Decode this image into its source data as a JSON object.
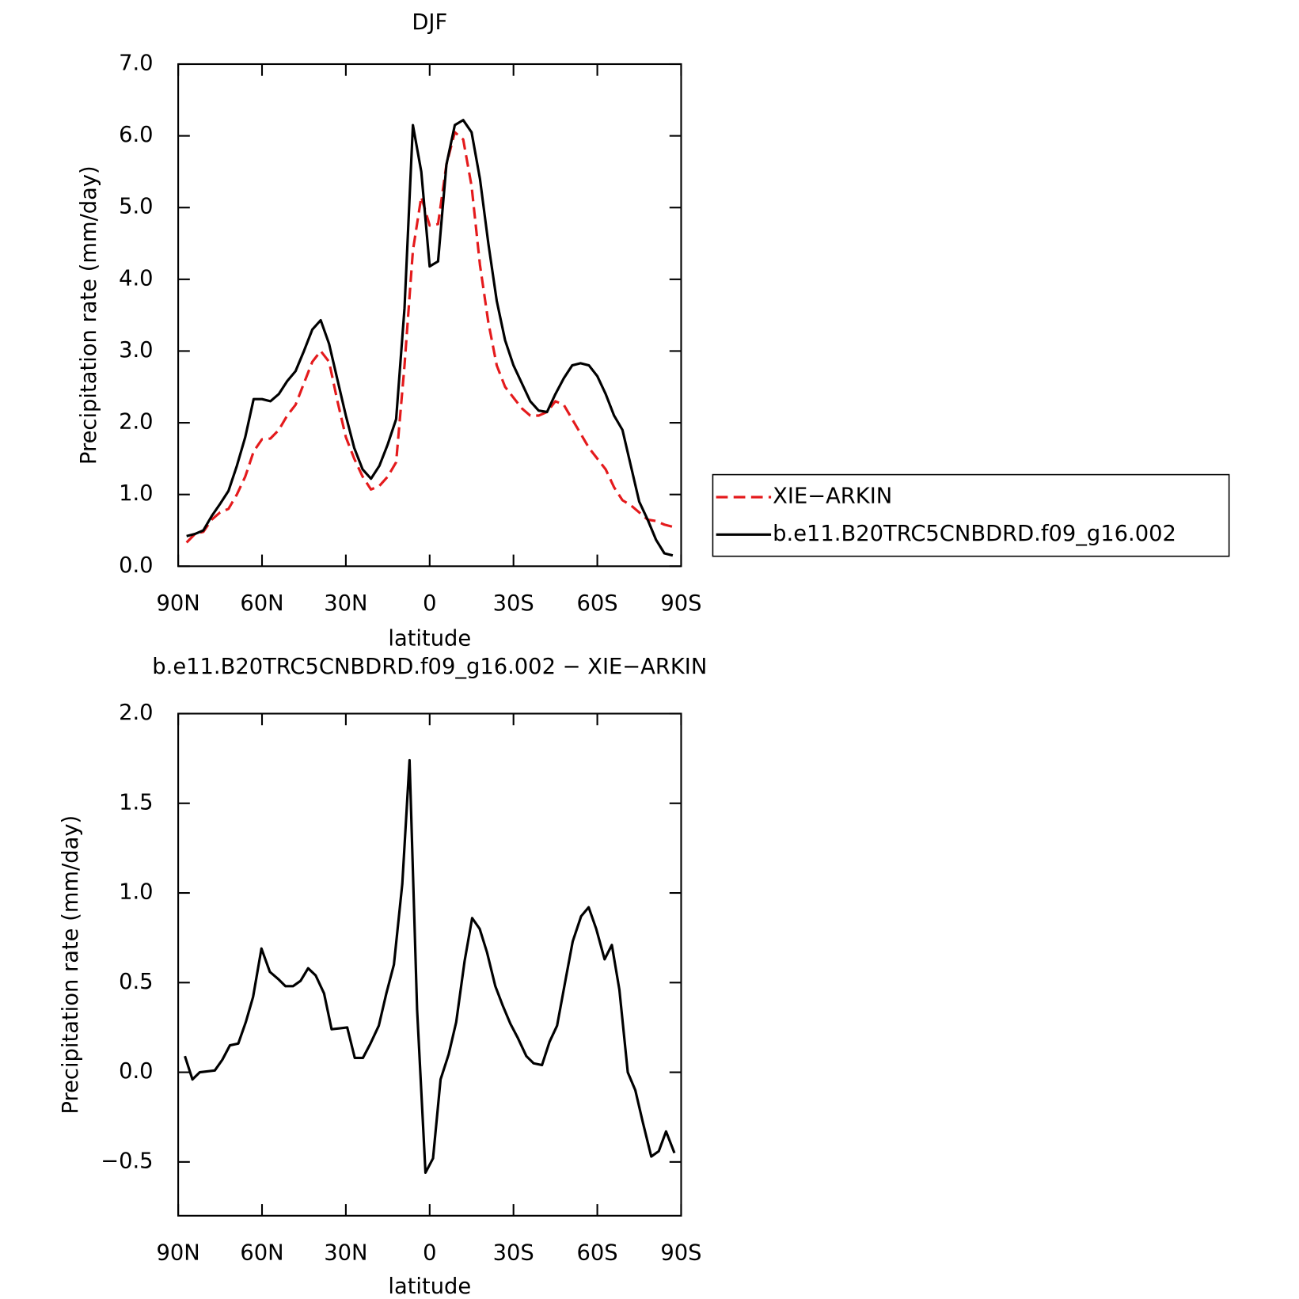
{
  "chart_data": [
    {
      "type": "line",
      "title": "DJF",
      "xlabel": "latitude",
      "ylabel": "Precipitation rate (mm/day)",
      "x": [
        87,
        84,
        81,
        78,
        75,
        72,
        69,
        66,
        63,
        60,
        57,
        54,
        51,
        48,
        45,
        42,
        39,
        36,
        33,
        30,
        27,
        24,
        21,
        18,
        15,
        12,
        9,
        6,
        3,
        0,
        -3,
        -6,
        -9,
        -12,
        -15,
        -18,
        -21,
        -24,
        -27,
        -30,
        -33,
        -36,
        -39,
        -42,
        -45,
        -48,
        -51,
        -54,
        -57,
        -60,
        -63,
        -66,
        -69,
        -72,
        -75,
        -78,
        -81,
        -84,
        -87
      ],
      "series": [
        {
          "name": "XIE−ARKIN",
          "color": "#e41a1c",
          "linestyle": "dashed",
          "values": [
            0.33,
            0.45,
            0.48,
            0.65,
            0.75,
            0.8,
            1.0,
            1.25,
            1.6,
            1.77,
            1.78,
            1.9,
            2.1,
            2.25,
            2.55,
            2.85,
            3.0,
            2.85,
            2.3,
            1.8,
            1.5,
            1.25,
            1.07,
            1.12,
            1.25,
            1.45,
            2.8,
            4.4,
            5.15,
            4.75,
            4.77,
            5.6,
            6.05,
            5.95,
            5.3,
            4.2,
            3.4,
            2.8,
            2.5,
            2.35,
            2.2,
            2.1,
            2.1,
            2.15,
            2.3,
            2.25,
            2.05,
            1.85,
            1.65,
            1.5,
            1.35,
            1.1,
            0.92,
            0.85,
            0.75,
            0.65,
            0.63,
            0.58,
            0.55
          ]
        },
        {
          "name": "b.e11.B20TRC5CNBDRD.f09_g16.002",
          "color": "#000000",
          "linestyle": "solid",
          "values": [
            0.42,
            0.45,
            0.5,
            0.7,
            0.87,
            1.05,
            1.4,
            1.8,
            2.33,
            2.33,
            2.3,
            2.4,
            2.58,
            2.72,
            3.0,
            3.3,
            3.43,
            3.1,
            2.6,
            2.1,
            1.65,
            1.35,
            1.22,
            1.4,
            1.7,
            2.05,
            3.6,
            6.15,
            5.5,
            4.18,
            4.25,
            5.6,
            6.15,
            6.22,
            6.05,
            5.4,
            4.5,
            3.7,
            3.15,
            2.8,
            2.55,
            2.3,
            2.17,
            2.15,
            2.4,
            2.62,
            2.8,
            2.83,
            2.8,
            2.65,
            2.4,
            2.1,
            1.9,
            1.4,
            0.9,
            0.65,
            0.37,
            0.18,
            0.15
          ]
        }
      ],
      "xlim": [
        90,
        -90
      ],
      "xticks": [
        {
          "value": 90,
          "label": "90N"
        },
        {
          "value": 60,
          "label": "60N"
        },
        {
          "value": 30,
          "label": "30N"
        },
        0,
        {
          "value": -30,
          "label": "30S"
        },
        {
          "value": -60,
          "label": "60S"
        },
        {
          "value": -90,
          "label": "90S"
        }
      ],
      "ylim": [
        0,
        7
      ],
      "yticks": [
        {
          "value": 0,
          "label": "0.0"
        },
        {
          "value": 1,
          "label": "1.0"
        },
        {
          "value": 2,
          "label": "2.0"
        },
        {
          "value": 3,
          "label": "3.0"
        },
        {
          "value": 4,
          "label": "4.0"
        },
        {
          "value": 5,
          "label": "5.0"
        },
        {
          "value": 6,
          "label": "6.0"
        },
        {
          "value": 7,
          "label": "7.0"
        }
      ],
      "legend": "right"
    },
    {
      "type": "line",
      "title": "b.e11.B20TRC5CNBDRD.f09_g16.002 − XIE−ARKIN",
      "xlabel": "latitude",
      "ylabel": "Precipitation rate (mm/day)",
      "x": [
        87.6,
        84.9,
        82.3,
        79.6,
        76.9,
        74.2,
        71.5,
        68.5,
        65.8,
        63.2,
        60.2,
        57.2,
        54.2,
        51.6,
        48.9,
        46.2,
        43.5,
        40.8,
        37.8,
        35.1,
        32.2,
        29.5,
        26.8,
        23.9,
        21.2,
        18.2,
        15.5,
        12.8,
        9.8,
        7.2,
        4.5,
        1.5,
        -1.2,
        -3.9,
        -6.8,
        -9.5,
        -12.5,
        -15.2,
        -17.9,
        -20.5,
        -23.5,
        -26.2,
        -28.9,
        -31.6,
        -34.6,
        -37.2,
        -40.2,
        -42.9,
        -45.6,
        -48.8,
        -51.2,
        -54.2,
        -56.9,
        -59.6,
        -62.6,
        -65.2,
        -67.9,
        -70.9,
        -73.6,
        -76.3,
        -79.3,
        -82.0,
        -84.6,
        -87.6
      ],
      "series": [
        {
          "color": "#000000",
          "linestyle": "solid",
          "values": [
            0.09,
            -0.04,
            0.0,
            0.005,
            0.01,
            0.07,
            0.15,
            0.16,
            0.28,
            0.42,
            0.69,
            0.56,
            0.52,
            0.48,
            0.48,
            0.51,
            0.58,
            0.54,
            0.44,
            0.24,
            0.245,
            0.25,
            0.08,
            0.08,
            0.16,
            0.26,
            0.44,
            0.6,
            1.05,
            1.74,
            0.35,
            -0.56,
            -0.48,
            -0.04,
            0.1,
            0.28,
            0.62,
            0.86,
            0.8,
            0.67,
            0.48,
            0.37,
            0.27,
            0.19,
            0.09,
            0.05,
            0.04,
            0.17,
            0.26,
            0.53,
            0.73,
            0.87,
            0.92,
            0.8,
            0.63,
            0.71,
            0.46,
            0.0,
            -0.1,
            -0.28,
            -0.47,
            -0.44,
            -0.33,
            -0.45
          ]
        }
      ],
      "xlim": [
        90,
        -90
      ],
      "xticks": [
        {
          "value": 90,
          "label": "90N"
        },
        {
          "value": 60,
          "label": "60N"
        },
        {
          "value": 30,
          "label": "30N"
        },
        0,
        {
          "value": -30,
          "label": "30S"
        },
        {
          "value": -60,
          "label": "60S"
        },
        {
          "value": -90,
          "label": "90S"
        }
      ],
      "ylim": [
        -0.8,
        2.0
      ],
      "yticks": [
        {
          "value": -0.5,
          "label": "−0.5"
        },
        {
          "value": 0,
          "label": "0.0"
        },
        {
          "value": 0.5,
          "label": "0.5"
        },
        {
          "value": 1,
          "label": "1.0"
        },
        {
          "value": 1.5,
          "label": "1.5"
        },
        {
          "value": 2,
          "label": "2.0"
        }
      ]
    }
  ]
}
